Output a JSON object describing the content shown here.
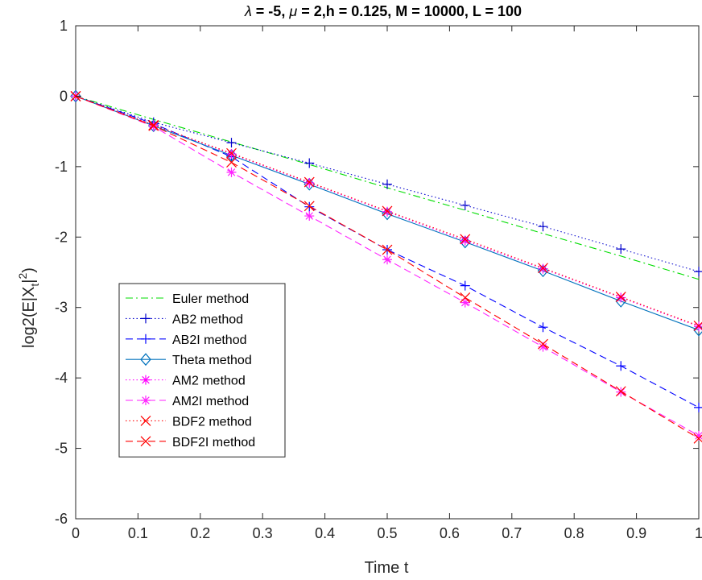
{
  "chart_data": {
    "type": "line",
    "title_parts": [
      "λ",
      " = -5, ",
      "μ",
      " = 2,h = 0.125, M  = 10000, L = 100"
    ],
    "xlabel": "Time t",
    "ylabel": "log2(E|X",
    "ylabel_sub": "t",
    "ylabel_end": "|",
    "ylabel_sup": "2",
    "ylabel_close": ")",
    "xlim": [
      0,
      1
    ],
    "ylim": [
      -6,
      1
    ],
    "xticks": [
      0,
      0.1,
      0.2,
      0.3,
      0.4,
      0.5,
      0.6,
      0.7,
      0.8,
      0.9,
      1
    ],
    "xtick_labels": [
      "0",
      "0.1",
      "0.2",
      "0.3",
      "0.4",
      "0.5",
      "0.6",
      "0.7",
      "0.8",
      "0.9",
      "1"
    ],
    "yticks": [
      -6,
      -5,
      -4,
      -3,
      -2,
      -1,
      0,
      1
    ],
    "ytick_labels": [
      "-6",
      "-5",
      "-4",
      "-3",
      "-2",
      "-1",
      "0",
      "1"
    ],
    "grid": false,
    "legend_position": "lower-left",
    "x": [
      0,
      0.125,
      0.25,
      0.375,
      0.5,
      0.625,
      0.75,
      0.875,
      1
    ],
    "series": [
      {
        "name": "Euler method",
        "color": "#00dd00",
        "dash": "dashdot",
        "marker": "none",
        "values": [
          0,
          -0.33,
          -0.65,
          -0.97,
          -1.3,
          -1.62,
          -1.95,
          -2.27,
          -2.6
        ]
      },
      {
        "name": "AB2 method",
        "color": "#0000cc",
        "dash": "dotted",
        "marker": "plus",
        "values": [
          0,
          -0.37,
          -0.66,
          -0.95,
          -1.25,
          -1.55,
          -1.85,
          -2.17,
          -2.49
        ]
      },
      {
        "name": "AB2I method",
        "color": "#0000ff",
        "dash": "dashed",
        "marker": "plus",
        "values": [
          0,
          -0.39,
          -0.86,
          -1.57,
          -2.18,
          -2.69,
          -3.28,
          -3.83,
          -4.42
        ]
      },
      {
        "name": "Theta method",
        "color": "#0072bd",
        "dash": "solid",
        "marker": "diamond",
        "values": [
          0,
          -0.42,
          -0.84,
          -1.25,
          -1.67,
          -2.07,
          -2.48,
          -2.91,
          -3.32
        ]
      },
      {
        "name": "AM2 method",
        "color": "#ff00ff",
        "dash": "dotted",
        "marker": "star",
        "values": [
          0,
          -0.41,
          -0.82,
          -1.23,
          -1.64,
          -2.05,
          -2.45,
          -2.86,
          -3.27
        ]
      },
      {
        "name": "AM2I method",
        "color": "#ff22ff",
        "dash": "dashed",
        "marker": "star",
        "values": [
          0,
          -0.43,
          -1.08,
          -1.7,
          -2.32,
          -2.93,
          -3.56,
          -4.2,
          -4.82
        ]
      },
      {
        "name": "BDF2 method",
        "color": "#ff0000",
        "dash": "dotted",
        "marker": "x",
        "values": [
          0,
          -0.41,
          -0.81,
          -1.22,
          -1.63,
          -2.03,
          -2.44,
          -2.85,
          -3.26
        ]
      },
      {
        "name": "BDF2I method",
        "color": "#ff0000",
        "dash": "dashed",
        "marker": "x",
        "values": [
          0,
          -0.42,
          -0.94,
          -1.56,
          -2.18,
          -2.86,
          -3.52,
          -4.19,
          -4.86
        ]
      }
    ]
  }
}
